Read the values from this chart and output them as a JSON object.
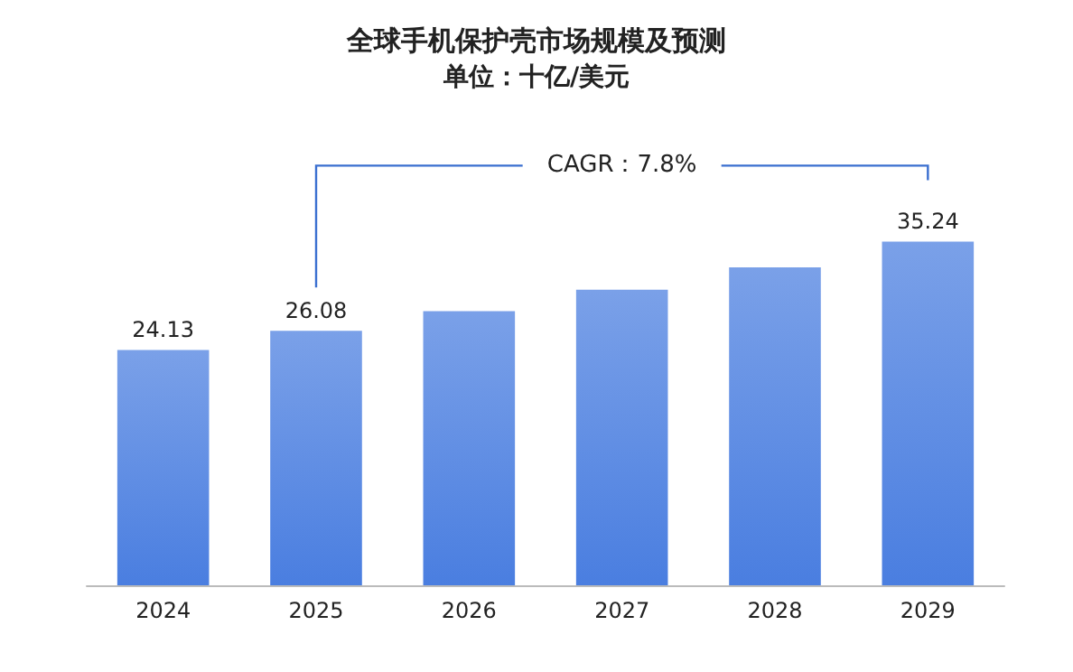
{
  "chart_data": {
    "type": "bar",
    "title": "全球手机保护壳市场规模及预测",
    "subtitle": "单位：十亿/美元",
    "categories": [
      "2024",
      "2025",
      "2026",
      "2027",
      "2028",
      "2029"
    ],
    "values": [
      24.13,
      26.08,
      28.1,
      30.3,
      32.6,
      35.24
    ],
    "value_labels": [
      "24.13",
      "26.08",
      null,
      null,
      null,
      "35.24"
    ],
    "color": "#4a7ee0",
    "annotations": [
      "CAGR：7.8%"
    ]
  }
}
